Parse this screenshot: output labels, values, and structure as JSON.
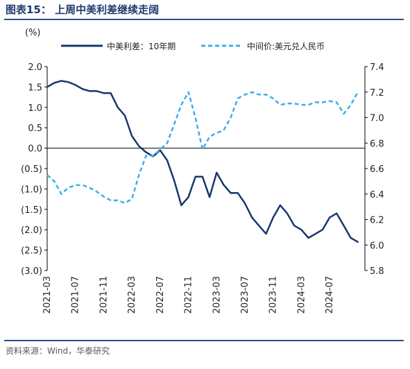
{
  "figure": {
    "title": "图表15：  上周中美利差继续走阔",
    "source": "资料来源：Wind，华泰研究"
  },
  "chart_data": {
    "type": "line",
    "title": "",
    "left_axis": {
      "label": "(%)",
      "range": [
        -3.0,
        2.0
      ],
      "ticks": [
        2.0,
        1.5,
        1.0,
        0.5,
        0.0,
        -0.5,
        -1.0,
        -1.5,
        -2.0,
        -2.5,
        -3.0
      ],
      "tick_labels": [
        "2.0",
        "1.5",
        "1.0",
        "0.5",
        "0.0",
        "(0.5)",
        "(1.0)",
        "(1.5)",
        "(2.0)",
        "(2.5)",
        "(3.0)"
      ]
    },
    "right_axis": {
      "label": "",
      "range": [
        5.8,
        7.4
      ],
      "ticks": [
        7.4,
        7.2,
        7.0,
        6.8,
        6.6,
        6.4,
        6.2,
        6.0,
        5.8
      ],
      "tick_labels": [
        "7.4",
        "7.2",
        "7.0",
        "6.8",
        "6.6",
        "6.4",
        "6.2",
        "6.0",
        "5.8"
      ]
    },
    "x_axis": {
      "range": [
        "2021-03",
        "2024-12"
      ],
      "tick_labels": [
        "2021-03",
        "2021-07",
        "2021-11",
        "2022-03",
        "2022-07",
        "2022-11",
        "2023-03",
        "2023-07",
        "2023-11",
        "2024-03",
        "2024-07"
      ]
    },
    "legend": {
      "placement": "top"
    },
    "grid": false,
    "series": [
      {
        "name": "中美利差：10年期",
        "axis": "left",
        "color": "#17376e",
        "style": "solid",
        "points": [
          [
            "2021-03",
            1.5
          ],
          [
            "2021-04",
            1.6
          ],
          [
            "2021-05",
            1.65
          ],
          [
            "2021-06",
            1.62
          ],
          [
            "2021-07",
            1.55
          ],
          [
            "2021-08",
            1.45
          ],
          [
            "2021-09",
            1.4
          ],
          [
            "2021-10",
            1.4
          ],
          [
            "2021-11",
            1.35
          ],
          [
            "2021-12",
            1.35
          ],
          [
            "2022-01",
            1.0
          ],
          [
            "2022-02",
            0.8
          ],
          [
            "2022-03",
            0.3
          ],
          [
            "2022-04",
            0.05
          ],
          [
            "2022-05",
            -0.1
          ],
          [
            "2022-06",
            -0.2
          ],
          [
            "2022-07",
            -0.05
          ],
          [
            "2022-08",
            -0.3
          ],
          [
            "2022-09",
            -0.8
          ],
          [
            "2022-10",
            -1.4
          ],
          [
            "2022-11",
            -1.2
          ],
          [
            "2022-12",
            -0.7
          ],
          [
            "2023-01",
            -0.7
          ],
          [
            "2023-02",
            -1.2
          ],
          [
            "2023-03",
            -0.6
          ],
          [
            "2023-04",
            -0.9
          ],
          [
            "2023-05",
            -1.1
          ],
          [
            "2023-06",
            -1.1
          ],
          [
            "2023-07",
            -1.35
          ],
          [
            "2023-08",
            -1.7
          ],
          [
            "2023-09",
            -1.9
          ],
          [
            "2023-10",
            -2.1
          ],
          [
            "2023-11",
            -1.7
          ],
          [
            "2023-12",
            -1.4
          ],
          [
            "2024-01",
            -1.6
          ],
          [
            "2024-02",
            -1.9
          ],
          [
            "2024-03",
            -2.0
          ],
          [
            "2024-04",
            -2.2
          ],
          [
            "2024-05",
            -2.1
          ],
          [
            "2024-06",
            -2.0
          ],
          [
            "2024-07",
            -1.7
          ],
          [
            "2024-08",
            -1.6
          ],
          [
            "2024-09",
            -1.9
          ],
          [
            "2024-10",
            -2.2
          ],
          [
            "2024-11",
            -2.3
          ]
        ]
      },
      {
        "name": "中间价:美元兑人民币",
        "axis": "right",
        "color": "#3daee9",
        "style": "dashed",
        "points": [
          [
            "2021-03",
            6.55
          ],
          [
            "2021-04",
            6.5
          ],
          [
            "2021-05",
            6.4
          ],
          [
            "2021-06",
            6.45
          ],
          [
            "2021-07",
            6.47
          ],
          [
            "2021-08",
            6.47
          ],
          [
            "2021-09",
            6.45
          ],
          [
            "2021-10",
            6.42
          ],
          [
            "2021-11",
            6.38
          ],
          [
            "2021-12",
            6.35
          ],
          [
            "2022-01",
            6.35
          ],
          [
            "2022-02",
            6.33
          ],
          [
            "2022-03",
            6.36
          ],
          [
            "2022-04",
            6.55
          ],
          [
            "2022-05",
            6.7
          ],
          [
            "2022-06",
            6.7
          ],
          [
            "2022-07",
            6.75
          ],
          [
            "2022-08",
            6.8
          ],
          [
            "2022-09",
            6.95
          ],
          [
            "2022-10",
            7.1
          ],
          [
            "2022-11",
            7.2
          ],
          [
            "2022-12",
            7.0
          ],
          [
            "2023-01",
            6.75
          ],
          [
            "2023-02",
            6.85
          ],
          [
            "2023-03",
            6.88
          ],
          [
            "2023-04",
            6.9
          ],
          [
            "2023-05",
            7.0
          ],
          [
            "2023-06",
            7.15
          ],
          [
            "2023-07",
            7.18
          ],
          [
            "2023-08",
            7.2
          ],
          [
            "2023-09",
            7.18
          ],
          [
            "2023-10",
            7.18
          ],
          [
            "2023-11",
            7.15
          ],
          [
            "2023-12",
            7.1
          ],
          [
            "2024-01",
            7.11
          ],
          [
            "2024-02",
            7.11
          ],
          [
            "2024-03",
            7.1
          ],
          [
            "2024-04",
            7.1
          ],
          [
            "2024-05",
            7.12
          ],
          [
            "2024-06",
            7.12
          ],
          [
            "2024-07",
            7.13
          ],
          [
            "2024-08",
            7.12
          ],
          [
            "2024-09",
            7.03
          ],
          [
            "2024-10",
            7.1
          ],
          [
            "2024-11",
            7.2
          ]
        ]
      }
    ]
  }
}
